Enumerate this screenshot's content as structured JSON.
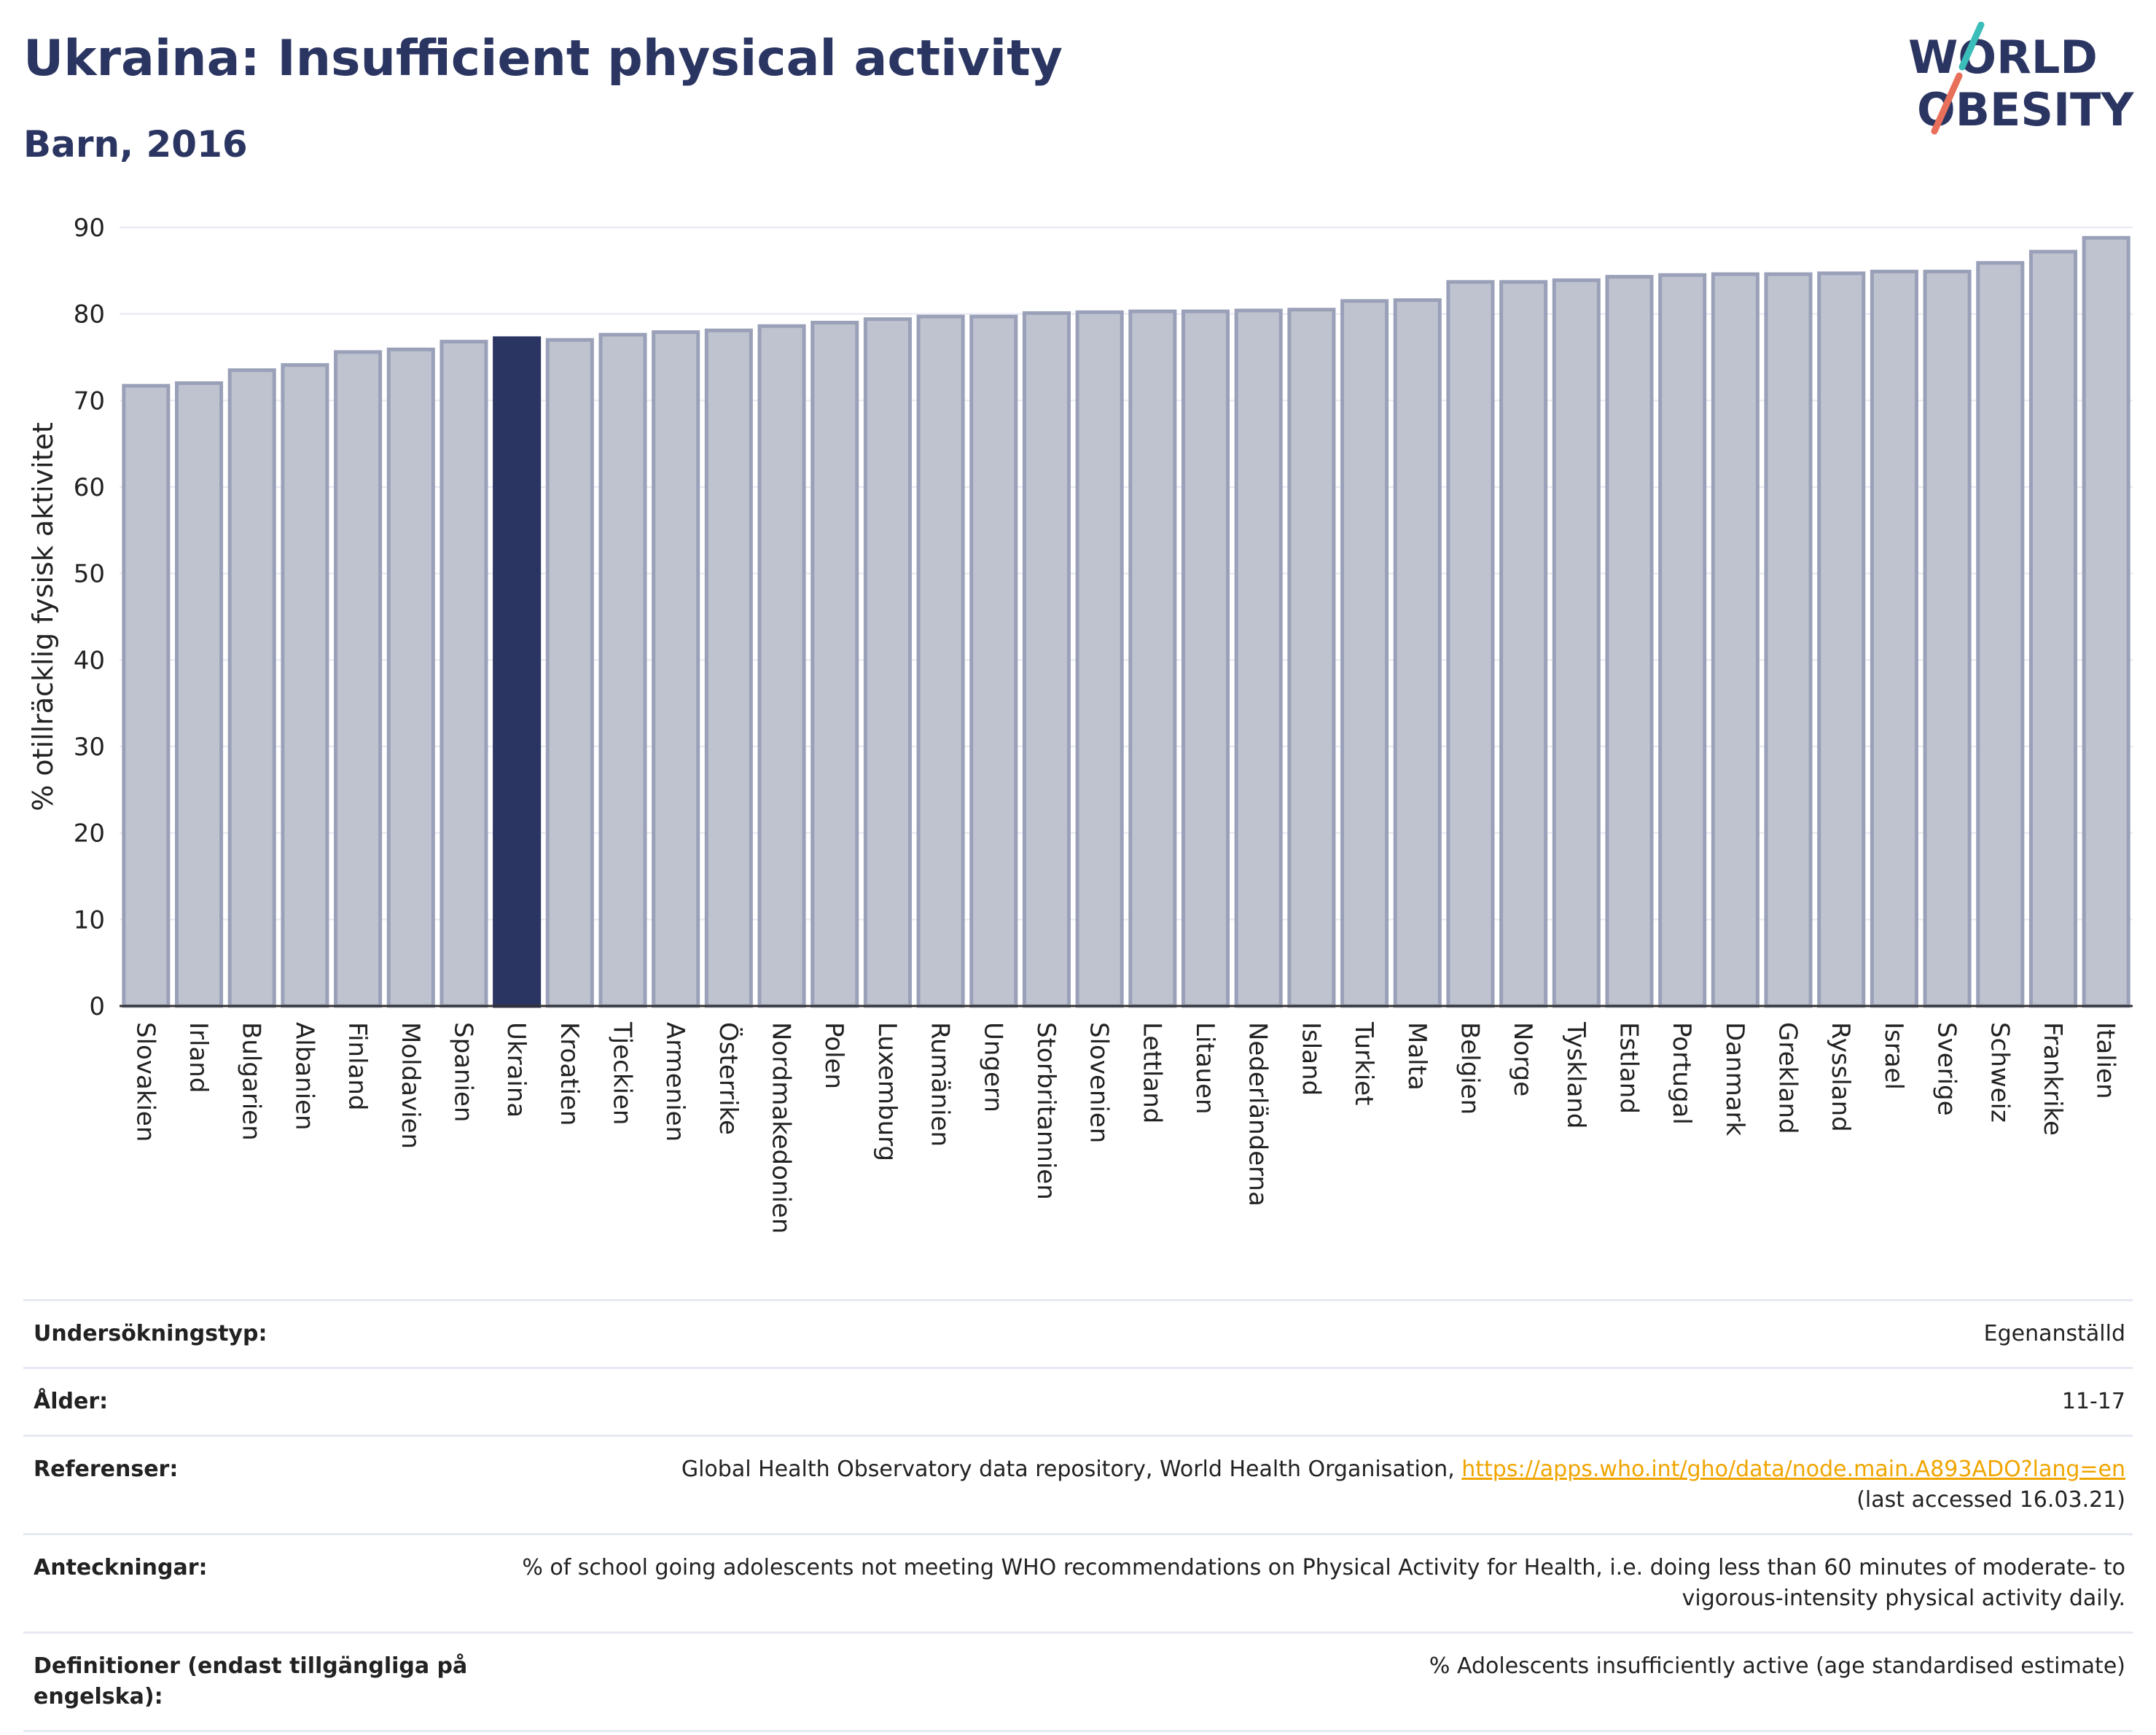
{
  "header": {
    "title": "Ukraina: Insufficient physical activity",
    "subtitle": "Barn, 2016"
  },
  "logo": {
    "line1": "WORLD",
    "line2": "OBESITY"
  },
  "chart_data": {
    "type": "bar",
    "title": "Ukraina: Insufficient physical activity",
    "subtitle": "Barn, 2016",
    "xlabel": "",
    "ylabel": "% otillräcklig fysisk aktivitet",
    "ylim": [
      0,
      90
    ],
    "yticks": [
      0,
      10,
      20,
      30,
      40,
      50,
      60,
      70,
      80,
      90
    ],
    "grid": true,
    "highlight": "Ukraina",
    "colors": {
      "bar": "#bfc3d0",
      "bar_border": "#9aa0b8",
      "highlight": "#2b3562",
      "grid": "#e6e9f2"
    },
    "categories": [
      "Slovakien",
      "Irland",
      "Bulgarien",
      "Albanien",
      "Finland",
      "Moldavien",
      "Spanien",
      "Ukraina",
      "Kroatien",
      "Tjeckien",
      "Armenien",
      "Österrike",
      "Nordmakedonien",
      "Polen",
      "Luxemburg",
      "Rumänien",
      "Ungern",
      "Storbritannien",
      "Slovenien",
      "Lettland",
      "Litauen",
      "Nederländerna",
      "Island",
      "Turkiet",
      "Malta",
      "Belgien",
      "Norge",
      "Tyskland",
      "Estland",
      "Portugal",
      "Danmark",
      "Grekland",
      "Ryssland",
      "Israel",
      "Sverige",
      "Schweiz",
      "Frankrike",
      "Italien"
    ],
    "values": [
      71.7,
      72.0,
      73.5,
      74.1,
      75.6,
      75.9,
      76.8,
      77.2,
      77.0,
      77.6,
      77.9,
      78.1,
      78.6,
      79.0,
      79.4,
      79.7,
      79.7,
      80.1,
      80.2,
      80.3,
      80.3,
      80.4,
      80.5,
      81.5,
      81.6,
      83.7,
      83.7,
      83.9,
      84.3,
      84.5,
      84.6,
      84.6,
      84.7,
      84.9,
      84.9,
      85.9,
      87.2,
      88.8
    ]
  },
  "meta": {
    "rows": [
      {
        "label": "Undersökningstyp:",
        "value": "Egenanställd"
      },
      {
        "label": "Ålder:",
        "value": "11-17"
      },
      {
        "label": "Referenser:",
        "value": "Global Health Observatory data repository, World Health Organisation, ",
        "link": "https://apps.who.int/gho/data/node.main.A893ADO?lang=en",
        "value_after": "(last accessed 16.03.21)"
      },
      {
        "label": "Anteckningar:",
        "value": "% of school going adolescents not meeting WHO recommendations on Physical Activity for Health, i.e. doing less than 60 minutes of moderate- to vigorous-intensity physical activity daily."
      },
      {
        "label": "Definitioner (endast tillgängliga på engelska):",
        "value": "% Adolescents insufficiently active (age standardised estimate)"
      }
    ]
  }
}
